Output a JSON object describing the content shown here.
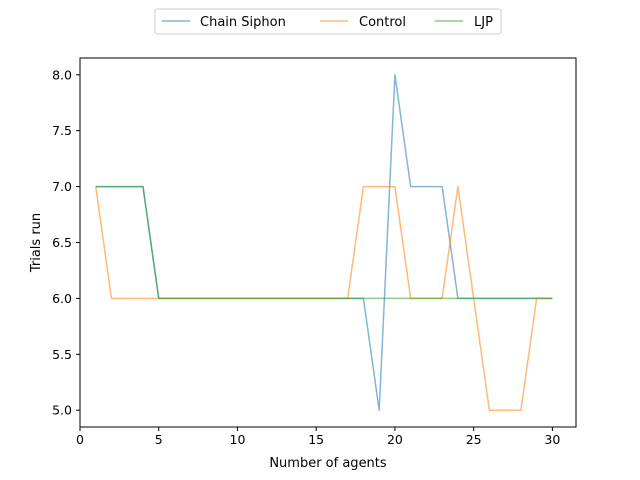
{
  "chart_data": {
    "type": "line",
    "title": "",
    "xlabel": "Number of agents",
    "ylabel": "Trials run",
    "xlim": [
      0,
      31.5
    ],
    "ylim": [
      4.85,
      8.15
    ],
    "xticks": [
      0,
      5,
      10,
      15,
      20,
      25,
      30
    ],
    "xtick_labels": [
      "0",
      "5",
      "10",
      "15",
      "20",
      "25",
      "30"
    ],
    "yticks": [
      5.0,
      5.5,
      6.0,
      6.5,
      7.0,
      7.5,
      8.0
    ],
    "ytick_labels": [
      "5.0",
      "5.5",
      "6.0",
      "6.5",
      "7.0",
      "7.5",
      "8.0"
    ],
    "grid": false,
    "legend_position": "top-center",
    "x": [
      1,
      2,
      3,
      4,
      5,
      6,
      7,
      8,
      9,
      10,
      11,
      12,
      13,
      14,
      15,
      16,
      17,
      18,
      19,
      20,
      21,
      22,
      23,
      24,
      25,
      26,
      27,
      28,
      29,
      30
    ],
    "series": [
      {
        "name": "Chain Siphon",
        "color": "#1f77b4",
        "values": [
          7,
          7,
          7,
          7,
          6,
          6,
          6,
          6,
          6,
          6,
          6,
          6,
          6,
          6,
          6,
          6,
          6,
          6,
          5,
          8,
          7,
          7,
          7,
          6,
          6,
          6,
          6,
          6,
          6,
          6
        ]
      },
      {
        "name": "Control",
        "color": "#ff7f0e",
        "values": [
          7,
          6,
          6,
          6,
          6,
          6,
          6,
          6,
          6,
          6,
          6,
          6,
          6,
          6,
          6,
          6,
          6,
          7,
          7,
          7,
          6,
          6,
          6,
          7,
          6,
          5,
          5,
          5,
          6,
          6
        ]
      },
      {
        "name": "LJP",
        "color": "#2ca02c",
        "values": [
          7,
          7,
          7,
          7,
          6,
          6,
          6,
          6,
          6,
          6,
          6,
          6,
          6,
          6,
          6,
          6,
          6,
          6,
          6,
          6,
          6,
          6,
          6,
          6,
          6,
          6,
          6,
          6,
          6,
          6
        ]
      }
    ]
  }
}
